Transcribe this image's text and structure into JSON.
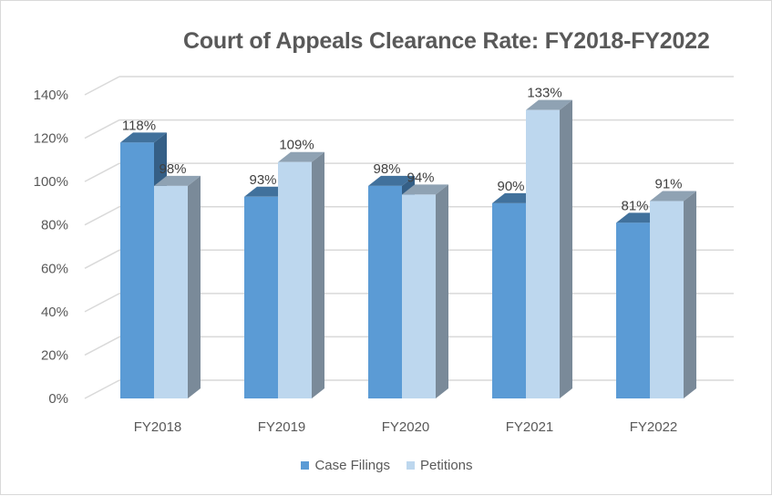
{
  "chart_data": {
    "type": "bar",
    "style": "3d-clustered-column",
    "title": "Court of Appeals Clearance Rate: FY2018-FY2022",
    "categories": [
      "FY2018",
      "FY2019",
      "FY2020",
      "FY2021",
      "FY2022"
    ],
    "series": [
      {
        "name": "Case Filings",
        "values": [
          118,
          93,
          98,
          90,
          81
        ],
        "labels": [
          "118%",
          "93%",
          "98%",
          "90%",
          "81%"
        ],
        "color": "#5b9bd5"
      },
      {
        "name": "Petitions",
        "values": [
          98,
          109,
          94,
          133,
          91
        ],
        "labels": [
          "98%",
          "109%",
          "94%",
          "133%",
          "91%"
        ],
        "color": "#bdd7ee"
      }
    ],
    "xlabel": "",
    "ylabel": "",
    "ylim": [
      0,
      140
    ],
    "yticks": [
      "0%",
      "20%",
      "40%",
      "60%",
      "80%",
      "100%",
      "120%",
      "140%"
    ],
    "grid": true,
    "legend_position": "bottom"
  },
  "legend": {
    "items": [
      {
        "label": "Case Filings",
        "color": "#5b9bd5"
      },
      {
        "label": "Petitions",
        "color": "#bdd7ee"
      }
    ]
  }
}
